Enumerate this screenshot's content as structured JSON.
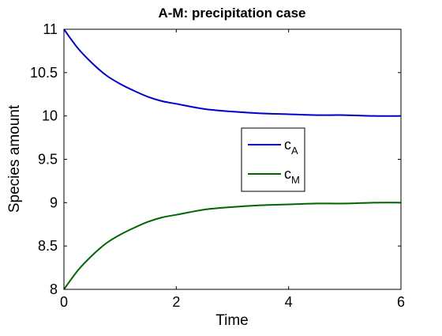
{
  "chart_data": {
    "type": "line",
    "title": "A-M: precipitation case",
    "xlabel": "Time",
    "ylabel": "Species amount",
    "xlim": [
      0,
      6
    ],
    "ylim": [
      8,
      11
    ],
    "xticks": [
      "0",
      "2",
      "4",
      "6"
    ],
    "yticks": [
      "8",
      "8.5",
      "9",
      "9.5",
      "10",
      "10.5",
      "11"
    ],
    "grid": false,
    "legend_position": "center-right",
    "x": [
      0,
      0.25,
      0.5,
      0.75,
      1,
      1.25,
      1.5,
      1.75,
      2,
      2.5,
      3,
      3.5,
      4,
      4.5,
      5,
      5.5,
      6
    ],
    "series": [
      {
        "name": "cA",
        "legend_main": "c",
        "legend_sub": "A",
        "color": "#0000cc",
        "values": [
          11,
          10.78,
          10.61,
          10.47,
          10.37,
          10.29,
          10.22,
          10.17,
          10.14,
          10.08,
          10.05,
          10.03,
          10.02,
          10.01,
          10.01,
          10.0,
          10.0
        ]
      },
      {
        "name": "cM",
        "legend_main": "c",
        "legend_sub": "M",
        "color": "#006600",
        "values": [
          8,
          8.22,
          8.39,
          8.53,
          8.63,
          8.71,
          8.78,
          8.83,
          8.86,
          8.92,
          8.95,
          8.97,
          8.98,
          8.99,
          8.99,
          9.0,
          9.0
        ]
      }
    ]
  }
}
